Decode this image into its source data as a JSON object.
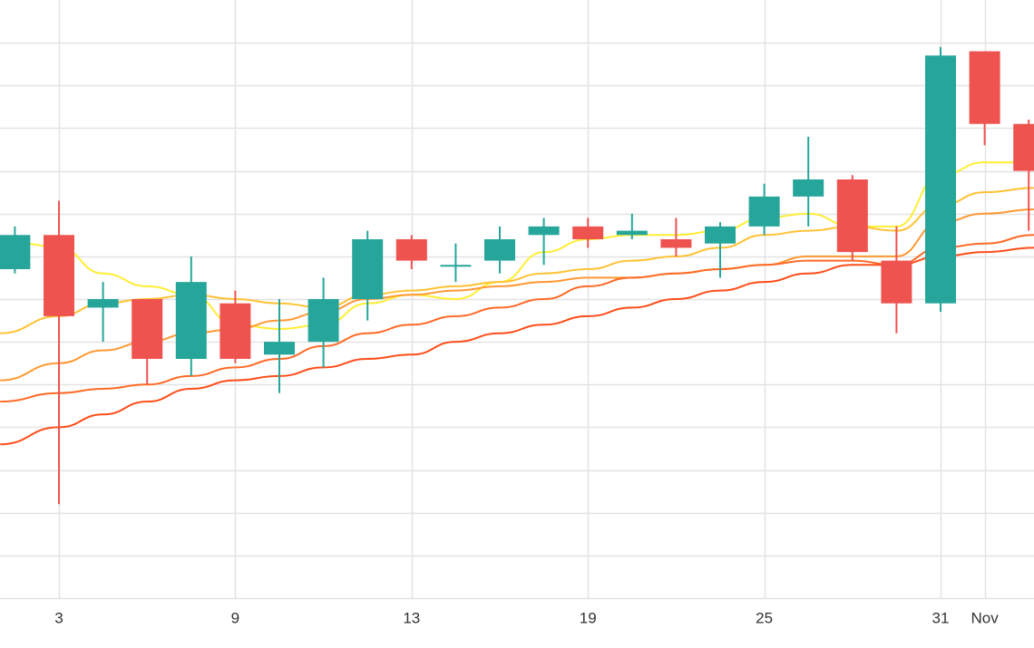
{
  "chart_data": {
    "type": "candlestick",
    "x_tick_labels": [
      {
        "label": "3",
        "day": 3
      },
      {
        "label": "9",
        "day": 9
      },
      {
        "label": "13",
        "day": 15
      },
      {
        "label": "19",
        "day": 21
      },
      {
        "label": "25",
        "day": 27
      },
      {
        "label": "31",
        "day": 33
      },
      {
        "label": "Nov",
        "day": 34.5
      }
    ],
    "y_gridlines": [
      100,
      99,
      98,
      97,
      96,
      95,
      94,
      93,
      92,
      91,
      90,
      89,
      88
    ],
    "ylim": [
      87.0,
      101.0
    ],
    "xlim": [
      1.0,
      36.2
    ],
    "grid": true,
    "colors": {
      "up": "#26a69a",
      "down": "#ef5350",
      "grid": "#e3e3e3",
      "ma": [
        "#ffee33",
        "#ffc233",
        "#ff9833",
        "#ff6a26",
        "#ff4d1a"
      ]
    },
    "candles": [
      {
        "day": 1.5,
        "open": 94.7,
        "close": 95.5,
        "high": 95.7,
        "low": 94.6
      },
      {
        "day": 3.0,
        "open": 95.5,
        "close": 93.6,
        "high": 96.3,
        "low": 89.2
      },
      {
        "day": 4.5,
        "open": 93.8,
        "close": 94.0,
        "high": 94.4,
        "low": 93.0
      },
      {
        "day": 6.0,
        "open": 94.0,
        "close": 92.6,
        "high": 94.0,
        "low": 92.0
      },
      {
        "day": 7.5,
        "open": 92.6,
        "close": 94.4,
        "high": 95.0,
        "low": 92.2
      },
      {
        "day": 9.0,
        "open": 93.9,
        "close": 92.6,
        "high": 94.2,
        "low": 92.5
      },
      {
        "day": 10.5,
        "open": 92.7,
        "close": 93.0,
        "high": 94.0,
        "low": 91.8
      },
      {
        "day": 12.0,
        "open": 93.0,
        "close": 94.0,
        "high": 94.5,
        "low": 92.4
      },
      {
        "day": 13.5,
        "open": 94.0,
        "close": 95.4,
        "high": 95.6,
        "low": 93.5
      },
      {
        "day": 15.0,
        "open": 95.4,
        "close": 94.9,
        "high": 95.5,
        "low": 94.7
      },
      {
        "day": 16.5,
        "open": 94.8,
        "close": 94.8,
        "high": 95.3,
        "low": 94.4
      },
      {
        "day": 18.0,
        "open": 94.9,
        "close": 95.4,
        "high": 95.7,
        "low": 94.6
      },
      {
        "day": 19.5,
        "open": 95.5,
        "close": 95.7,
        "high": 95.9,
        "low": 94.8
      },
      {
        "day": 21.0,
        "open": 95.7,
        "close": 95.4,
        "high": 95.9,
        "low": 95.2
      },
      {
        "day": 22.5,
        "open": 95.5,
        "close": 95.6,
        "high": 96.0,
        "low": 95.4
      },
      {
        "day": 24.0,
        "open": 95.4,
        "close": 95.2,
        "high": 95.9,
        "low": 95.0
      },
      {
        "day": 25.5,
        "open": 95.3,
        "close": 95.7,
        "high": 95.8,
        "low": 94.5
      },
      {
        "day": 27.0,
        "open": 95.7,
        "close": 96.4,
        "high": 96.7,
        "low": 95.5
      },
      {
        "day": 28.5,
        "open": 96.4,
        "close": 96.8,
        "high": 97.8,
        "low": 95.7
      },
      {
        "day": 30.0,
        "open": 96.8,
        "close": 95.1,
        "high": 96.9,
        "low": 94.9
      },
      {
        "day": 31.5,
        "open": 94.9,
        "close": 93.9,
        "high": 95.7,
        "low": 93.2
      },
      {
        "day": 33.0,
        "open": 93.9,
        "close": 99.7,
        "high": 99.9,
        "low": 93.7
      },
      {
        "day": 34.5,
        "open": 99.8,
        "close": 98.1,
        "high": 99.8,
        "low": 97.6
      },
      {
        "day": 36.0,
        "open": 98.1,
        "close": 97.0,
        "high": 98.2,
        "low": 95.6
      }
    ],
    "moving_averages": [
      {
        "points": [
          [
            1.0,
            95.1
          ],
          [
            1.8,
            95.3
          ],
          [
            3.0,
            95.2
          ],
          [
            4.5,
            94.6
          ],
          [
            6.0,
            94.3
          ],
          [
            7.5,
            94.1
          ],
          [
            9.0,
            93.4
          ],
          [
            10.5,
            93.3
          ],
          [
            12.0,
            93.4
          ],
          [
            13.5,
            93.9
          ],
          [
            15.0,
            94.1
          ],
          [
            16.5,
            94.0
          ],
          [
            18.0,
            94.4
          ],
          [
            19.5,
            95.1
          ],
          [
            21.0,
            95.4
          ],
          [
            22.5,
            95.5
          ],
          [
            24.0,
            95.5
          ],
          [
            25.5,
            95.6
          ],
          [
            27.0,
            95.9
          ],
          [
            28.5,
            96.0
          ],
          [
            30.0,
            95.7
          ],
          [
            31.5,
            95.7
          ],
          [
            33.0,
            96.9
          ],
          [
            34.5,
            97.2
          ],
          [
            36.2,
            97.2
          ]
        ]
      },
      {
        "points": [
          [
            1.0,
            93.2
          ],
          [
            3.0,
            93.6
          ],
          [
            4.5,
            93.9
          ],
          [
            6.0,
            94.0
          ],
          [
            7.5,
            94.1
          ],
          [
            9.0,
            94.0
          ],
          [
            10.5,
            93.9
          ],
          [
            12.0,
            93.8
          ],
          [
            13.5,
            94.1
          ],
          [
            15.0,
            94.2
          ],
          [
            16.5,
            94.3
          ],
          [
            18.0,
            94.4
          ],
          [
            19.5,
            94.6
          ],
          [
            21.0,
            94.7
          ],
          [
            22.5,
            94.9
          ],
          [
            24.0,
            95.0
          ],
          [
            25.5,
            95.2
          ],
          [
            27.0,
            95.5
          ],
          [
            28.5,
            95.6
          ],
          [
            30.0,
            95.7
          ],
          [
            31.5,
            95.6
          ],
          [
            33.0,
            96.2
          ],
          [
            34.5,
            96.5
          ],
          [
            36.2,
            96.6
          ]
        ]
      },
      {
        "points": [
          [
            1.0,
            92.1
          ],
          [
            3.0,
            92.5
          ],
          [
            4.5,
            92.8
          ],
          [
            6.0,
            93.0
          ],
          [
            7.5,
            93.2
          ],
          [
            9.0,
            93.3
          ],
          [
            10.5,
            93.5
          ],
          [
            12.0,
            93.7
          ],
          [
            13.5,
            94.0
          ],
          [
            15.0,
            94.1
          ],
          [
            16.5,
            94.2
          ],
          [
            18.0,
            94.3
          ],
          [
            19.5,
            94.4
          ],
          [
            21.0,
            94.5
          ],
          [
            22.5,
            94.5
          ],
          [
            24.0,
            94.6
          ],
          [
            25.5,
            94.7
          ],
          [
            27.0,
            94.8
          ],
          [
            28.5,
            95.0
          ],
          [
            30.0,
            95.0
          ],
          [
            31.5,
            95.0
          ],
          [
            33.0,
            95.8
          ],
          [
            34.5,
            96.0
          ],
          [
            36.2,
            96.1
          ]
        ]
      },
      {
        "points": [
          [
            1.0,
            91.6
          ],
          [
            3.0,
            91.8
          ],
          [
            4.5,
            91.9
          ],
          [
            6.0,
            92.0
          ],
          [
            7.5,
            92.2
          ],
          [
            9.0,
            92.4
          ],
          [
            10.5,
            92.6
          ],
          [
            12.0,
            92.9
          ],
          [
            13.5,
            93.2
          ],
          [
            15.0,
            93.4
          ],
          [
            16.5,
            93.6
          ],
          [
            18.0,
            93.8
          ],
          [
            19.5,
            94.0
          ],
          [
            21.0,
            94.3
          ],
          [
            22.5,
            94.5
          ],
          [
            24.0,
            94.6
          ],
          [
            25.5,
            94.7
          ],
          [
            27.0,
            94.8
          ],
          [
            28.5,
            94.9
          ],
          [
            30.0,
            94.9
          ],
          [
            31.5,
            94.8
          ],
          [
            33.0,
            95.2
          ],
          [
            34.5,
            95.3
          ],
          [
            36.2,
            95.5
          ]
        ]
      },
      {
        "points": [
          [
            1.0,
            90.6
          ],
          [
            3.0,
            91.0
          ],
          [
            4.5,
            91.3
          ],
          [
            6.0,
            91.6
          ],
          [
            7.5,
            91.9
          ],
          [
            9.0,
            92.1
          ],
          [
            10.5,
            92.2
          ],
          [
            12.0,
            92.4
          ],
          [
            13.5,
            92.6
          ],
          [
            15.0,
            92.7
          ],
          [
            16.5,
            93.0
          ],
          [
            18.0,
            93.2
          ],
          [
            19.5,
            93.4
          ],
          [
            21.0,
            93.6
          ],
          [
            22.5,
            93.8
          ],
          [
            24.0,
            94.0
          ],
          [
            25.5,
            94.2
          ],
          [
            27.0,
            94.4
          ],
          [
            28.5,
            94.6
          ],
          [
            30.0,
            94.8
          ],
          [
            31.5,
            94.8
          ],
          [
            33.0,
            95.0
          ],
          [
            34.5,
            95.1
          ],
          [
            36.2,
            95.2
          ]
        ]
      }
    ]
  }
}
